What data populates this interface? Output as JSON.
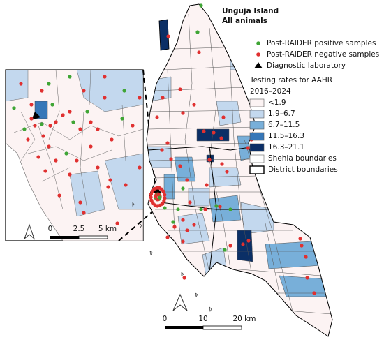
{
  "title": "Unguja Island",
  "subtitle": "All animals",
  "legend": {
    "points": [
      {
        "label": "Post-RAIDER positive samples",
        "color": "#3fa535"
      },
      {
        "label": "Post-RAIDER negative samples",
        "color": "#e03030"
      },
      {
        "label": "Diagnostic laboratory",
        "color": "#000000"
      }
    ],
    "heading": "Testing rates for AAHR",
    "period": "2016–2024",
    "classes": [
      {
        "label": "<1.9",
        "color": "#fcf3f3"
      },
      {
        "label": "1.9–6.7",
        "color": "#c3d8ee"
      },
      {
        "label": "6.7–11.5",
        "color": "#78afd9"
      },
      {
        "label": "11.5–16.3",
        "color": "#3677b8"
      },
      {
        "label": "16.3–21.1",
        "color": "#0b2f66"
      }
    ],
    "boundaries": [
      "Shehia boundaries",
      "District boundaries"
    ]
  },
  "scale_bar": {
    "labels": [
      "0",
      "10",
      "20 km"
    ]
  },
  "inset": {
    "scale_bar": {
      "labels": [
        "0",
        "2.5",
        "5 km"
      ]
    }
  }
}
